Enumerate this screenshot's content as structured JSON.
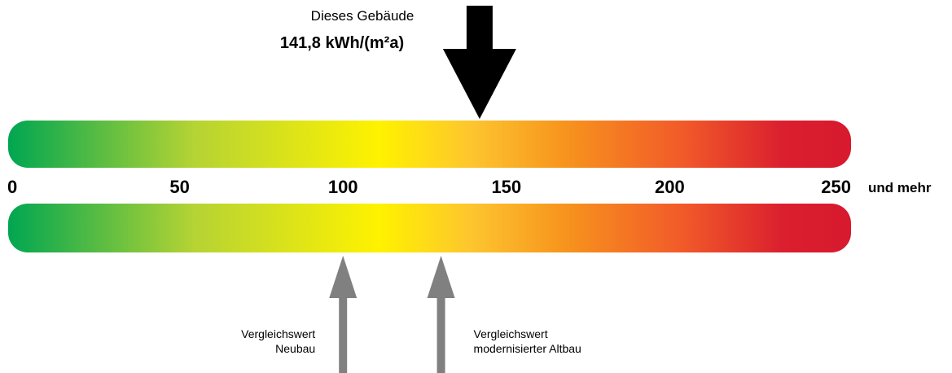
{
  "building": {
    "caption": "Dieses Gebäude",
    "value_text": "141,8 kWh/(m²a)",
    "value": 141.8
  },
  "scale": {
    "min": 0,
    "max": 250,
    "ticks": [
      {
        "value": 0,
        "label": "0"
      },
      {
        "value": 50,
        "label": "50"
      },
      {
        "value": 100,
        "label": "100"
      },
      {
        "value": 150,
        "label": "150"
      },
      {
        "value": 200,
        "label": "200"
      },
      {
        "value": 250,
        "label": "250"
      }
    ],
    "suffix": "und mehr",
    "gradient_stops": [
      {
        "offset": 0.0,
        "color": "#00a651"
      },
      {
        "offset": 0.22,
        "color": "#b5d334"
      },
      {
        "offset": 0.44,
        "color": "#fff200"
      },
      {
        "offset": 0.55,
        "color": "#fdc52f"
      },
      {
        "offset": 0.66,
        "color": "#f7941d"
      },
      {
        "offset": 0.8,
        "color": "#f15a29"
      },
      {
        "offset": 0.92,
        "color": "#da1f2e"
      },
      {
        "offset": 1.0,
        "color": "#d8192e"
      }
    ]
  },
  "comparisons": [
    {
      "value": 100,
      "line1": "Vergleichswert",
      "line2": "Neubau",
      "align": "end"
    },
    {
      "value": 130,
      "line1": "Vergleichswert",
      "line2": "modernisierter Altbau",
      "align": "start"
    }
  ],
  "colors": {
    "building_arrow": "#000000",
    "comparison_arrow": "#808080"
  }
}
